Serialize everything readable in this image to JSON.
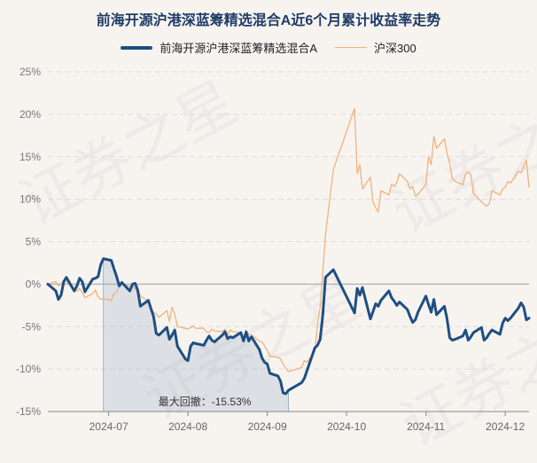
{
  "chart_data": {
    "type": "line",
    "title": "前海开源沪港深蓝筹精选混合A近6个月累计收益率走势",
    "x_ticks": [
      "2024-07",
      "2024-08",
      "2024-09",
      "2024-10",
      "2024-11",
      "2024-12"
    ],
    "y_ticks": [
      "25%",
      "20%",
      "15%",
      "10%",
      "5%",
      "0%",
      "-5%",
      "-10%",
      "-15%"
    ],
    "ylim": [
      -15,
      25
    ],
    "xlim": [
      "2024-06-14",
      "2024-12-13"
    ],
    "grid": true,
    "legend_position": "top-center",
    "series": [
      {
        "name": "前海开源沪港深蓝筹精选混合A",
        "color": "#1f4e82",
        "x": [
          "2024-06-14",
          "2024-06-17",
          "2024-06-18",
          "2024-06-19",
          "2024-06-20",
          "2024-06-21",
          "2024-06-24",
          "2024-06-25",
          "2024-06-26",
          "2024-06-27",
          "2024-06-28",
          "2024-07-01",
          "2024-07-02",
          "2024-07-03",
          "2024-07-04",
          "2024-07-05",
          "2024-07-08",
          "2024-07-09",
          "2024-07-10",
          "2024-07-11",
          "2024-07-12",
          "2024-07-15",
          "2024-07-16",
          "2024-07-17",
          "2024-07-18",
          "2024-07-19",
          "2024-07-22",
          "2024-07-23",
          "2024-07-24",
          "2024-07-25",
          "2024-07-26",
          "2024-07-29",
          "2024-07-30",
          "2024-07-31",
          "2024-08-01",
          "2024-08-02",
          "2024-08-05",
          "2024-08-06",
          "2024-08-07",
          "2024-08-08",
          "2024-08-09",
          "2024-08-12",
          "2024-08-13",
          "2024-08-14",
          "2024-08-15",
          "2024-08-16",
          "2024-08-19",
          "2024-08-20",
          "2024-08-21",
          "2024-08-22",
          "2024-08-23",
          "2024-08-26",
          "2024-08-27",
          "2024-08-28",
          "2024-08-29",
          "2024-08-30",
          "2024-09-02",
          "2024-09-03",
          "2024-09-04",
          "2024-09-05",
          "2024-09-06",
          "2024-09-09",
          "2024-09-10",
          "2024-09-11",
          "2024-09-12",
          "2024-09-13",
          "2024-09-18",
          "2024-09-19",
          "2024-09-20",
          "2024-09-23",
          "2024-09-24",
          "2024-09-25",
          "2024-09-26",
          "2024-09-27",
          "2024-09-30",
          "2024-10-08",
          "2024-10-09",
          "2024-10-10",
          "2024-10-11",
          "2024-10-14",
          "2024-10-15",
          "2024-10-16",
          "2024-10-17",
          "2024-10-18",
          "2024-10-21",
          "2024-10-22",
          "2024-10-23",
          "2024-10-24",
          "2024-10-25",
          "2024-10-28",
          "2024-10-29",
          "2024-10-30",
          "2024-10-31",
          "2024-11-01",
          "2024-11-04",
          "2024-11-05",
          "2024-11-06",
          "2024-11-07",
          "2024-11-08",
          "2024-11-11",
          "2024-11-12",
          "2024-11-13",
          "2024-11-14",
          "2024-11-15",
          "2024-11-18",
          "2024-11-19",
          "2024-11-20",
          "2024-11-21",
          "2024-11-22",
          "2024-11-25",
          "2024-11-26",
          "2024-11-27",
          "2024-11-28",
          "2024-11-29",
          "2024-12-02",
          "2024-12-03",
          "2024-12-04",
          "2024-12-05",
          "2024-12-06",
          "2024-12-09",
          "2024-12-10",
          "2024-12-11",
          "2024-12-12",
          "2024-12-13"
        ],
        "y": [
          0.0,
          -0.8,
          -1.8,
          -1.3,
          0.3,
          0.8,
          -0.8,
          -0.2,
          0.7,
          0.3,
          -0.9,
          0.6,
          0.7,
          0.9,
          2.3,
          3.0,
          2.8,
          1.8,
          0.9,
          -0.2,
          0.2,
          -0.8,
          0.0,
          0.1,
          -0.7,
          -2.6,
          -1.9,
          -2.9,
          -3.8,
          -5.8,
          -6.0,
          -5.1,
          -6.5,
          -6.0,
          -5.4,
          -7.3,
          -8.8,
          -9.0,
          -7.3,
          -6.9,
          -7.0,
          -7.2,
          -6.6,
          -6.1,
          -6.6,
          -6.8,
          -6.0,
          -5.6,
          -6.4,
          -6.2,
          -6.3,
          -5.7,
          -6.7,
          -5.6,
          -6.7,
          -6.2,
          -7.7,
          -8.7,
          -9.2,
          -9.4,
          -10.5,
          -10.8,
          -11.4,
          -12.8,
          -12.9,
          -12.5,
          -11.6,
          -11.1,
          -10.2,
          -7.5,
          -7.2,
          -6.5,
          -3.6,
          0.8,
          1.7,
          -3.4,
          -0.5,
          -1.3,
          -0.4,
          -4.1,
          -3.2,
          -2.3,
          -2.6,
          -1.9,
          -0.8,
          -1.6,
          -2.0,
          -2.5,
          -2.1,
          -3.0,
          -3.8,
          -4.5,
          -4.2,
          -3.3,
          -1.4,
          -2.4,
          -3.3,
          -1.8,
          -3.6,
          -2.6,
          -4.1,
          -6.3,
          -6.6,
          -6.5,
          -6.1,
          -5.4,
          -6.6,
          -6.2,
          -5.7,
          -5.1,
          -6.6,
          -6.3,
          -5.8,
          -5.4,
          -5.9,
          -4.6,
          -4.0,
          -4.3,
          -4.0,
          -2.8,
          -2.2,
          -2.7,
          -4.2,
          -4.0
        ]
      },
      {
        "name": "沪深300",
        "color": "#f0b27f",
        "x": [
          "2024-06-14",
          "2024-06-17",
          "2024-06-18",
          "2024-06-19",
          "2024-06-20",
          "2024-06-21",
          "2024-06-24",
          "2024-06-25",
          "2024-06-26",
          "2024-06-27",
          "2024-06-28",
          "2024-07-01",
          "2024-07-02",
          "2024-07-03",
          "2024-07-04",
          "2024-07-05",
          "2024-07-08",
          "2024-07-09",
          "2024-07-10",
          "2024-07-11",
          "2024-07-12",
          "2024-07-15",
          "2024-07-16",
          "2024-07-17",
          "2024-07-18",
          "2024-07-19",
          "2024-07-22",
          "2024-07-23",
          "2024-07-24",
          "2024-07-25",
          "2024-07-26",
          "2024-07-29",
          "2024-07-30",
          "2024-07-31",
          "2024-08-01",
          "2024-08-02",
          "2024-08-05",
          "2024-08-06",
          "2024-08-07",
          "2024-08-08",
          "2024-08-09",
          "2024-08-12",
          "2024-08-13",
          "2024-08-14",
          "2024-08-15",
          "2024-08-16",
          "2024-08-19",
          "2024-08-20",
          "2024-08-21",
          "2024-08-22",
          "2024-08-23",
          "2024-08-26",
          "2024-08-27",
          "2024-08-28",
          "2024-08-29",
          "2024-08-30",
          "2024-09-02",
          "2024-09-03",
          "2024-09-04",
          "2024-09-05",
          "2024-09-06",
          "2024-09-09",
          "2024-09-10",
          "2024-09-11",
          "2024-09-12",
          "2024-09-13",
          "2024-09-18",
          "2024-09-19",
          "2024-09-20",
          "2024-09-23",
          "2024-09-24",
          "2024-09-25",
          "2024-09-26",
          "2024-09-27",
          "2024-09-30",
          "2024-10-08",
          "2024-10-09",
          "2024-10-10",
          "2024-10-11",
          "2024-10-14",
          "2024-10-15",
          "2024-10-16",
          "2024-10-17",
          "2024-10-18",
          "2024-10-21",
          "2024-10-22",
          "2024-10-23",
          "2024-10-24",
          "2024-10-25",
          "2024-10-28",
          "2024-10-29",
          "2024-10-30",
          "2024-10-31",
          "2024-11-01",
          "2024-11-04",
          "2024-11-05",
          "2024-11-06",
          "2024-11-07",
          "2024-11-08",
          "2024-11-11",
          "2024-11-12",
          "2024-11-13",
          "2024-11-14",
          "2024-11-15",
          "2024-11-18",
          "2024-11-19",
          "2024-11-20",
          "2024-11-21",
          "2024-11-22",
          "2024-11-25",
          "2024-11-26",
          "2024-11-27",
          "2024-11-28",
          "2024-11-29",
          "2024-12-02",
          "2024-12-03",
          "2024-12-04",
          "2024-12-05",
          "2024-12-06",
          "2024-12-09",
          "2024-12-10",
          "2024-12-11",
          "2024-12-12",
          "2024-12-13"
        ],
        "y": [
          0.0,
          0.3,
          -0.2,
          0.0,
          0.4,
          0.3,
          -0.7,
          -0.8,
          -0.5,
          -1.0,
          -1.6,
          -1.1,
          -0.7,
          -1.5,
          -1.8,
          -1.7,
          -1.9,
          -1.1,
          -0.9,
          -0.2,
          0.1,
          -0.3,
          -0.2,
          -0.6,
          -0.5,
          -1.4,
          -2.0,
          -2.9,
          -3.3,
          -3.5,
          -3.9,
          -3.1,
          -4.4,
          -2.7,
          -3.5,
          -5.0,
          -5.2,
          -5.3,
          -5.1,
          -4.9,
          -5.2,
          -5.2,
          -5.6,
          -5.7,
          -5.3,
          -5.5,
          -5.6,
          -5.3,
          -6.0,
          -5.4,
          -5.6,
          -5.7,
          -6.4,
          -6.2,
          -5.8,
          -6.0,
          -6.7,
          -6.8,
          -7.3,
          -7.8,
          -8.5,
          -8.6,
          -8.8,
          -9.4,
          -9.9,
          -10.3,
          -9.8,
          -9.0,
          -9.2,
          -7.9,
          -4.7,
          -2.7,
          1.4,
          5.8,
          13.5,
          20.7,
          13.0,
          14.1,
          11.2,
          12.6,
          9.6,
          9.0,
          8.5,
          11.0,
          10.5,
          11.8,
          11.5,
          12.0,
          13.0,
          12.1,
          11.2,
          11.5,
          10.4,
          10.6,
          11.7,
          15.0,
          14.1,
          17.4,
          16.0,
          17.1,
          15.4,
          14.2,
          12.4,
          12.1,
          11.7,
          13.0,
          13.2,
          12.9,
          10.7,
          9.7,
          9.4,
          9.2,
          9.5,
          11.0,
          10.5,
          11.2,
          11.4,
          12.1,
          11.9,
          13.3,
          13.1,
          13.8,
          14.6,
          11.4
        ]
      }
    ],
    "annotation": {
      "label": "最大回撤：-15.53%",
      "start": "2024-07-05",
      "end": "2024-09-13"
    }
  },
  "watermark_text": "证券之星"
}
